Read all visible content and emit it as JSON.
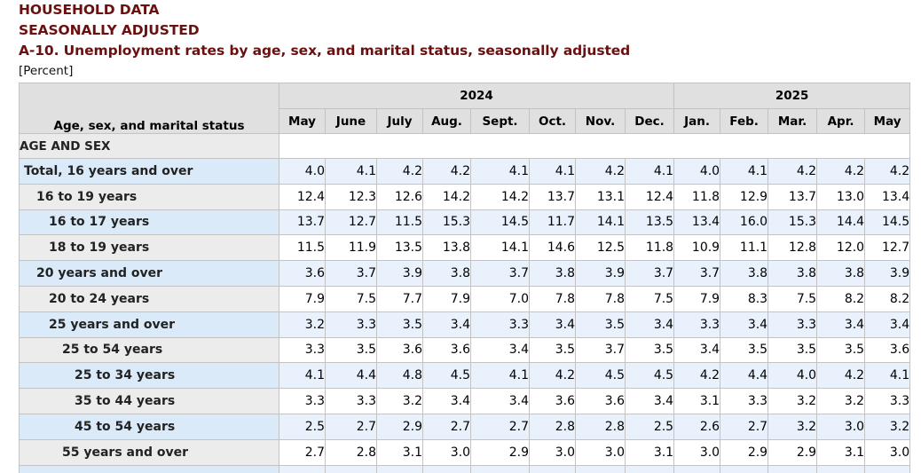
{
  "header": {
    "line1": "HOUSEHOLD DATA",
    "line2": "SEASONALLY ADJUSTED",
    "title": "A-10. Unemployment rates by age, sex, and marital status, seasonally adjusted",
    "unit": "[Percent]"
  },
  "table": {
    "stub_header": "Age, sex, and marital status",
    "years": [
      {
        "label": "2024",
        "span": 8
      },
      {
        "label": "2025",
        "span": 5
      }
    ],
    "months": [
      "May",
      "June",
      "July",
      "Aug.",
      "Sept.",
      "Oct.",
      "Nov.",
      "Dec.",
      "Jan.",
      "Feb.",
      "Mar.",
      "Apr.",
      "May"
    ],
    "section": "AGE AND SEX",
    "rows": [
      {
        "label": "Total, 16 years and over",
        "indent": 0,
        "values": [
          "4.0",
          "4.1",
          "4.2",
          "4.2",
          "4.1",
          "4.1",
          "4.2",
          "4.1",
          "4.0",
          "4.1",
          "4.2",
          "4.2",
          "4.2"
        ]
      },
      {
        "label": "16 to 19 years",
        "indent": 1,
        "values": [
          "12.4",
          "12.3",
          "12.6",
          "14.2",
          "14.2",
          "13.7",
          "13.1",
          "12.4",
          "11.8",
          "12.9",
          "13.7",
          "13.0",
          "13.4"
        ]
      },
      {
        "label": "16 to 17 years",
        "indent": 2,
        "values": [
          "13.7",
          "12.7",
          "11.5",
          "15.3",
          "14.5",
          "11.7",
          "14.1",
          "13.5",
          "13.4",
          "16.0",
          "15.3",
          "14.4",
          "14.5"
        ]
      },
      {
        "label": "18 to 19 years",
        "indent": 2,
        "values": [
          "11.5",
          "11.9",
          "13.5",
          "13.8",
          "14.1",
          "14.6",
          "12.5",
          "11.8",
          "10.9",
          "11.1",
          "12.8",
          "12.0",
          "12.7"
        ]
      },
      {
        "label": "20 years and over",
        "indent": 1,
        "values": [
          "3.6",
          "3.7",
          "3.9",
          "3.8",
          "3.7",
          "3.8",
          "3.9",
          "3.7",
          "3.7",
          "3.8",
          "3.8",
          "3.8",
          "3.9"
        ]
      },
      {
        "label": "20 to 24 years",
        "indent": 2,
        "values": [
          "7.9",
          "7.5",
          "7.7",
          "7.9",
          "7.0",
          "7.8",
          "7.8",
          "7.5",
          "7.9",
          "8.3",
          "7.5",
          "8.2",
          "8.2"
        ]
      },
      {
        "label": "25 years and over",
        "indent": 2,
        "values": [
          "3.2",
          "3.3",
          "3.5",
          "3.4",
          "3.3",
          "3.4",
          "3.5",
          "3.4",
          "3.3",
          "3.4",
          "3.3",
          "3.4",
          "3.4"
        ]
      },
      {
        "label": "25 to 54 years",
        "indent": 3,
        "values": [
          "3.3",
          "3.5",
          "3.6",
          "3.6",
          "3.4",
          "3.5",
          "3.7",
          "3.5",
          "3.4",
          "3.5",
          "3.5",
          "3.5",
          "3.6"
        ]
      },
      {
        "label": "25 to 34 years",
        "indent": 4,
        "values": [
          "4.1",
          "4.4",
          "4.8",
          "4.5",
          "4.1",
          "4.2",
          "4.5",
          "4.5",
          "4.2",
          "4.4",
          "4.0",
          "4.2",
          "4.1"
        ]
      },
      {
        "label": "35 to 44 years",
        "indent": 4,
        "values": [
          "3.3",
          "3.3",
          "3.2",
          "3.4",
          "3.4",
          "3.6",
          "3.6",
          "3.4",
          "3.1",
          "3.3",
          "3.2",
          "3.2",
          "3.3"
        ]
      },
      {
        "label": "45 to 54 years",
        "indent": 4,
        "values": [
          "2.5",
          "2.7",
          "2.9",
          "2.7",
          "2.7",
          "2.8",
          "2.8",
          "2.5",
          "2.6",
          "2.7",
          "3.2",
          "3.0",
          "3.2"
        ]
      },
      {
        "label": "55 years and over",
        "indent": 3,
        "values": [
          "2.7",
          "2.8",
          "3.1",
          "3.0",
          "2.9",
          "3.0",
          "3.0",
          "3.1",
          "3.0",
          "2.9",
          "2.9",
          "3.1",
          "3.0"
        ]
      }
    ]
  }
}
